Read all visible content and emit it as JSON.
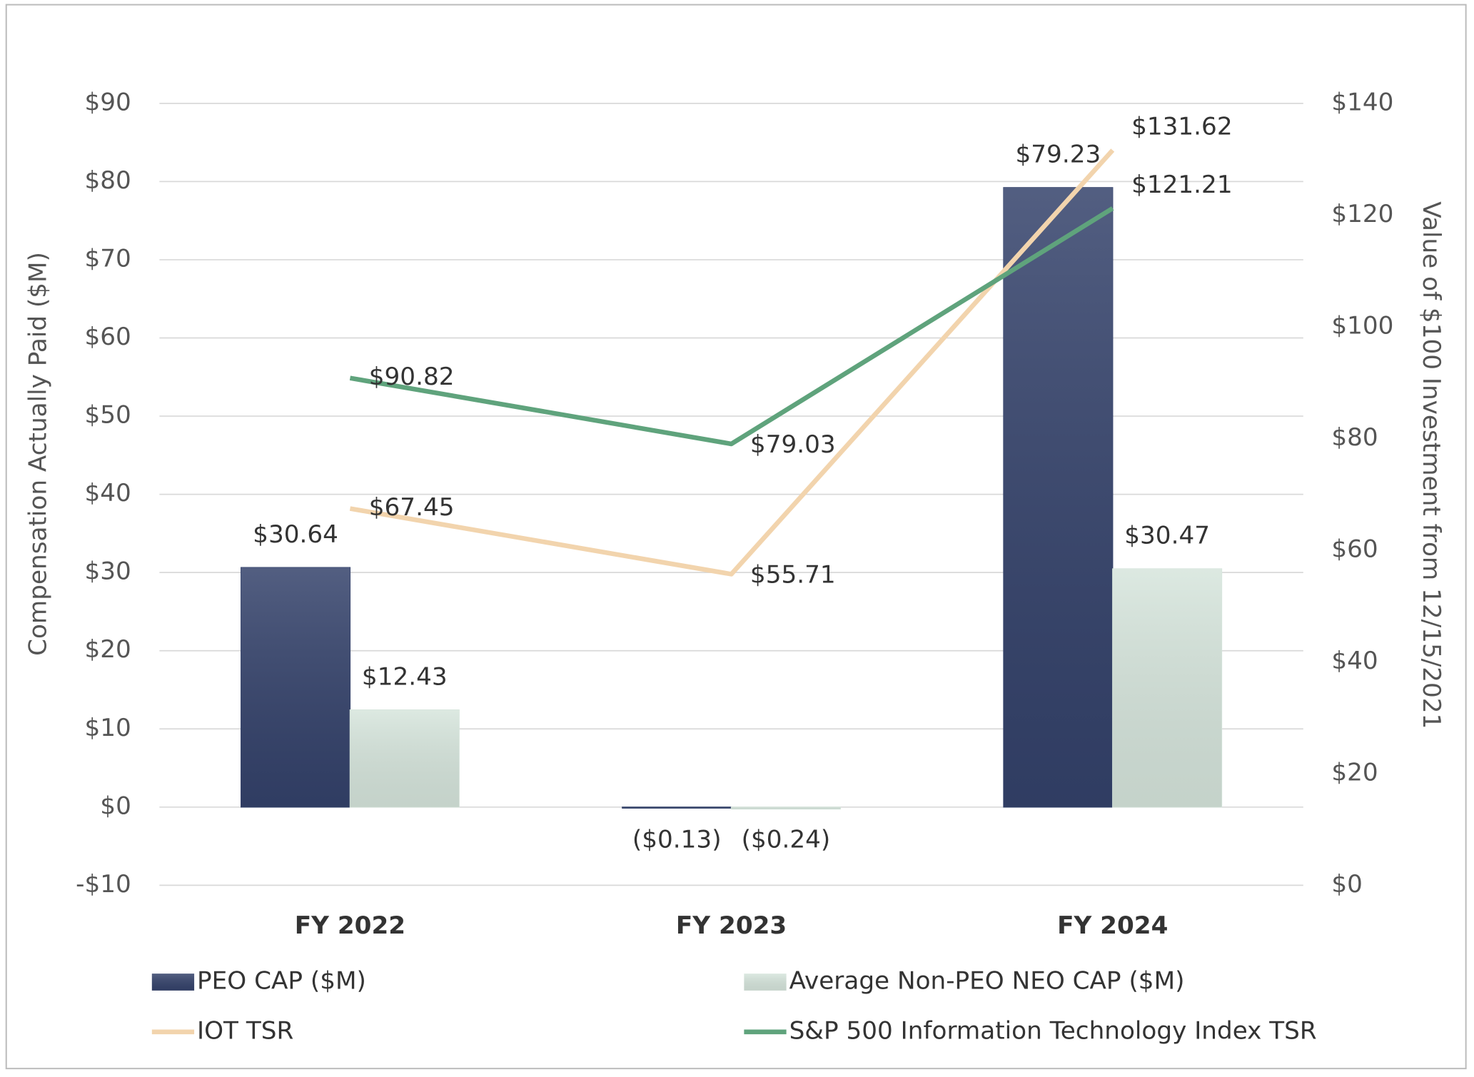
{
  "chart_data": {
    "type": "bar_line",
    "categories": [
      "FY 2022",
      "FY 2023",
      "FY 2024"
    ],
    "y_label": "Compensation Actually Paid ($M)",
    "y2_label": "Value of $100 Investment from 12/15/2021",
    "ylim": [
      -10,
      90
    ],
    "yticks": [
      {
        "value": -10,
        "label": "-$10"
      },
      {
        "value": 0,
        "label": "$0"
      },
      {
        "value": 10,
        "label": "$10"
      },
      {
        "value": 20,
        "label": "$20"
      },
      {
        "value": 30,
        "label": "$30"
      },
      {
        "value": 40,
        "label": "$40"
      },
      {
        "value": 50,
        "label": "$50"
      },
      {
        "value": 60,
        "label": "$60"
      },
      {
        "value": 70,
        "label": "$70"
      },
      {
        "value": 80,
        "label": "$80"
      },
      {
        "value": 90,
        "label": "$90"
      }
    ],
    "y2lim": [
      0,
      140
    ],
    "y2ticks": [
      {
        "value": 0,
        "label": "$0"
      },
      {
        "value": 20,
        "label": "$20"
      },
      {
        "value": 40,
        "label": "$40"
      },
      {
        "value": 60,
        "label": "$60"
      },
      {
        "value": 80,
        "label": "$80"
      },
      {
        "value": 100,
        "label": "$100"
      },
      {
        "value": 120,
        "label": "$120"
      },
      {
        "value": 140,
        "label": "$140"
      }
    ],
    "grid": true,
    "series": [
      {
        "name": "PEO CAP ($M)",
        "kind": "bar",
        "color": "#34426b",
        "values": [
          30.64,
          -0.13,
          79.23
        ],
        "value_labels": [
          "$30.64",
          "($0.13)",
          "$79.23"
        ]
      },
      {
        "name": "Average Non-PEO NEO CAP ($M)",
        "kind": "bar",
        "color": "#d6e5dc",
        "values": [
          12.43,
          -0.24,
          30.47
        ],
        "value_labels": [
          "$12.43",
          "($0.24)",
          "$30.47"
        ]
      },
      {
        "name": "IOT TSR",
        "kind": "line",
        "axis": "y2",
        "color": "#f2d4ad",
        "values": [
          67.45,
          55.71,
          131.62
        ],
        "value_labels": [
          "$67.45",
          "$55.71",
          "$131.62"
        ]
      },
      {
        "name": "S&P 500 Information Technology Index TSR",
        "kind": "line",
        "axis": "y2",
        "color": "#5fa37c",
        "values": [
          90.82,
          79.03,
          121.21
        ],
        "value_labels": [
          "$90.82",
          "$79.03",
          "$121.21"
        ]
      }
    ]
  }
}
